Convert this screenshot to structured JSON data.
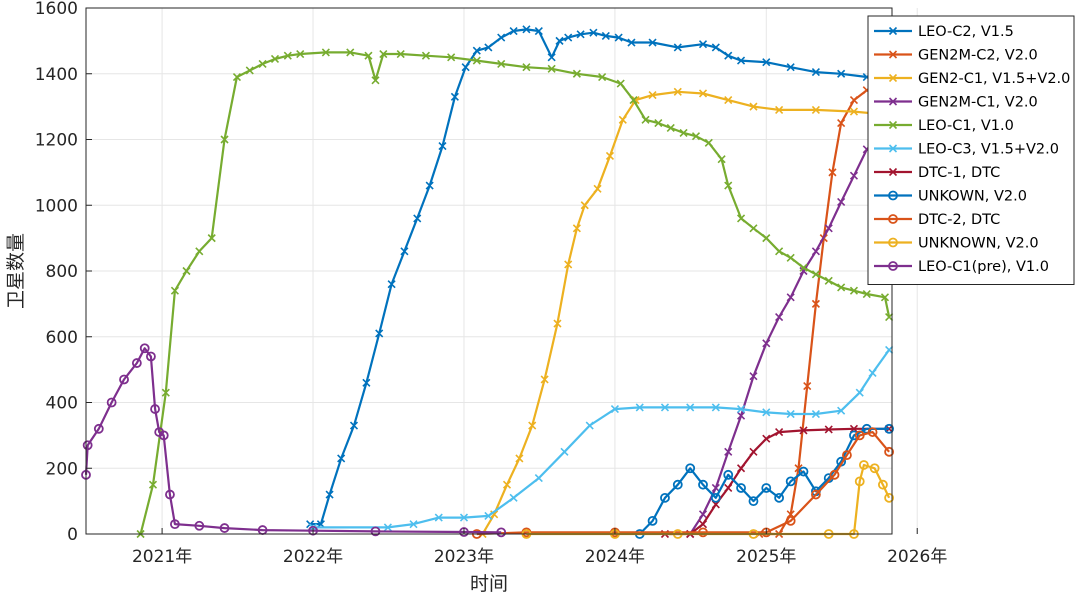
{
  "chart_data": {
    "type": "line",
    "title": "",
    "xlabel": "时间",
    "ylabel": "卫星数量",
    "xlim": [
      "2020-07-01",
      "2025-11-01"
    ],
    "ylim": [
      0,
      1600
    ],
    "grid": true,
    "legend_position": "top-right",
    "x_ticks": [
      {
        "date": "2021-01-01",
        "label": "2021年"
      },
      {
        "date": "2022-01-01",
        "label": "2022年"
      },
      {
        "date": "2023-01-01",
        "label": "2023年"
      },
      {
        "date": "2024-01-01",
        "label": "2024年"
      },
      {
        "date": "2025-01-01",
        "label": "2025年"
      },
      {
        "date": "2026-01-01",
        "label": "2026年"
      }
    ],
    "y_ticks": [
      0,
      200,
      400,
      600,
      800,
      1000,
      1200,
      1400,
      1600
    ],
    "series": [
      {
        "name": "LEO-C2, V1.5",
        "color": "#0072BD",
        "marker": "x",
        "points": [
          [
            "2021-12-25",
            30
          ],
          [
            "2022-01-20",
            30
          ],
          [
            "2022-02-10",
            120
          ],
          [
            "2022-03-10",
            230
          ],
          [
            "2022-04-10",
            330
          ],
          [
            "2022-05-10",
            460
          ],
          [
            "2022-06-10",
            610
          ],
          [
            "2022-07-10",
            760
          ],
          [
            "2022-08-10",
            860
          ],
          [
            "2022-09-10",
            960
          ],
          [
            "2022-10-10",
            1060
          ],
          [
            "2022-11-10",
            1180
          ],
          [
            "2022-12-10",
            1330
          ],
          [
            "2023-01-05",
            1420
          ],
          [
            "2023-02-01",
            1470
          ],
          [
            "2023-03-01",
            1480
          ],
          [
            "2023-04-01",
            1510
          ],
          [
            "2023-05-01",
            1530
          ],
          [
            "2023-06-01",
            1535
          ],
          [
            "2023-07-01",
            1530
          ],
          [
            "2023-08-01",
            1450
          ],
          [
            "2023-08-20",
            1500
          ],
          [
            "2023-09-10",
            1510
          ],
          [
            "2023-10-10",
            1520
          ],
          [
            "2023-11-10",
            1525
          ],
          [
            "2023-12-10",
            1515
          ],
          [
            "2024-01-10",
            1510
          ],
          [
            "2024-02-10",
            1495
          ],
          [
            "2024-04-01",
            1495
          ],
          [
            "2024-06-01",
            1480
          ],
          [
            "2024-08-01",
            1490
          ],
          [
            "2024-09-01",
            1480
          ],
          [
            "2024-10-01",
            1455
          ],
          [
            "2024-11-01",
            1440
          ],
          [
            "2025-01-01",
            1435
          ],
          [
            "2025-03-01",
            1420
          ],
          [
            "2025-05-01",
            1405
          ],
          [
            "2025-07-01",
            1400
          ],
          [
            "2025-09-01",
            1390
          ],
          [
            "2025-10-25",
            1380
          ]
        ]
      },
      {
        "name": "GEN2M-C2, V2.0",
        "color": "#D95319",
        "marker": "x",
        "points": [
          [
            "2024-12-15",
            0
          ],
          [
            "2025-02-01",
            0
          ],
          [
            "2025-03-01",
            60
          ],
          [
            "2025-03-20",
            200
          ],
          [
            "2025-04-10",
            450
          ],
          [
            "2025-05-01",
            700
          ],
          [
            "2025-05-20",
            900
          ],
          [
            "2025-06-10",
            1100
          ],
          [
            "2025-07-01",
            1250
          ],
          [
            "2025-08-01",
            1320
          ],
          [
            "2025-09-01",
            1350
          ],
          [
            "2025-10-01",
            1360
          ],
          [
            "2025-10-25",
            1340
          ]
        ]
      },
      {
        "name": "GEN2-C1, V1.5+V2.0",
        "color": "#EDB120",
        "marker": "x",
        "points": [
          [
            "2023-02-15",
            0
          ],
          [
            "2023-03-15",
            60
          ],
          [
            "2023-04-15",
            150
          ],
          [
            "2023-05-15",
            230
          ],
          [
            "2023-06-15",
            330
          ],
          [
            "2023-07-15",
            470
          ],
          [
            "2023-08-15",
            640
          ],
          [
            "2023-09-10",
            820
          ],
          [
            "2023-10-01",
            930
          ],
          [
            "2023-10-20",
            1000
          ],
          [
            "2023-11-20",
            1050
          ],
          [
            "2023-12-20",
            1150
          ],
          [
            "2024-01-20",
            1260
          ],
          [
            "2024-02-20",
            1320
          ],
          [
            "2024-04-01",
            1335
          ],
          [
            "2024-06-01",
            1345
          ],
          [
            "2024-08-01",
            1340
          ],
          [
            "2024-10-01",
            1320
          ],
          [
            "2024-12-01",
            1300
          ],
          [
            "2025-02-01",
            1290
          ],
          [
            "2025-05-01",
            1290
          ],
          [
            "2025-08-01",
            1285
          ],
          [
            "2025-10-25",
            1275
          ]
        ]
      },
      {
        "name": "GEN2M-C1, V2.0",
        "color": "#7E2F8E",
        "marker": "x",
        "points": [
          [
            "2024-07-01",
            0
          ],
          [
            "2024-08-01",
            60
          ],
          [
            "2024-09-01",
            140
          ],
          [
            "2024-10-01",
            250
          ],
          [
            "2024-11-01",
            360
          ],
          [
            "2024-12-01",
            480
          ],
          [
            "2025-01-01",
            580
          ],
          [
            "2025-02-01",
            660
          ],
          [
            "2025-03-01",
            720
          ],
          [
            "2025-04-01",
            800
          ],
          [
            "2025-05-01",
            860
          ],
          [
            "2025-06-01",
            930
          ],
          [
            "2025-07-01",
            1010
          ],
          [
            "2025-08-01",
            1090
          ],
          [
            "2025-09-01",
            1170
          ],
          [
            "2025-10-25",
            1240
          ]
        ]
      },
      {
        "name": "LEO-C1, V1.0",
        "color": "#77AC30",
        "marker": "x",
        "points": [
          [
            "2020-11-10",
            0
          ],
          [
            "2020-12-10",
            150
          ],
          [
            "2021-01-10",
            430
          ],
          [
            "2021-02-01",
            740
          ],
          [
            "2021-03-01",
            800
          ],
          [
            "2021-04-01",
            860
          ],
          [
            "2021-05-01",
            900
          ],
          [
            "2021-06-01",
            1200
          ],
          [
            "2021-07-01",
            1390
          ],
          [
            "2021-08-01",
            1410
          ],
          [
            "2021-09-01",
            1430
          ],
          [
            "2021-10-01",
            1445
          ],
          [
            "2021-11-01",
            1455
          ],
          [
            "2021-12-01",
            1460
          ],
          [
            "2022-02-01",
            1465
          ],
          [
            "2022-04-01",
            1465
          ],
          [
            "2022-05-15",
            1455
          ],
          [
            "2022-06-01",
            1380
          ],
          [
            "2022-06-20",
            1460
          ],
          [
            "2022-08-01",
            1460
          ],
          [
            "2022-10-01",
            1455
          ],
          [
            "2022-12-01",
            1450
          ],
          [
            "2023-02-01",
            1440
          ],
          [
            "2023-04-01",
            1430
          ],
          [
            "2023-06-01",
            1420
          ],
          [
            "2023-08-01",
            1415
          ],
          [
            "2023-10-01",
            1400
          ],
          [
            "2023-12-01",
            1390
          ],
          [
            "2024-01-15",
            1370
          ],
          [
            "2024-02-15",
            1320
          ],
          [
            "2024-03-15",
            1260
          ],
          [
            "2024-04-15",
            1250
          ],
          [
            "2024-05-15",
            1235
          ],
          [
            "2024-06-15",
            1220
          ],
          [
            "2024-07-15",
            1210
          ],
          [
            "2024-08-15",
            1190
          ],
          [
            "2024-09-15",
            1140
          ],
          [
            "2024-10-01",
            1060
          ],
          [
            "2024-11-01",
            960
          ],
          [
            "2024-12-01",
            930
          ],
          [
            "2025-01-01",
            900
          ],
          [
            "2025-02-01",
            860
          ],
          [
            "2025-03-01",
            840
          ],
          [
            "2025-04-01",
            810
          ],
          [
            "2025-05-01",
            790
          ],
          [
            "2025-06-01",
            770
          ],
          [
            "2025-07-01",
            750
          ],
          [
            "2025-08-01",
            740
          ],
          [
            "2025-09-01",
            730
          ],
          [
            "2025-10-15",
            720
          ],
          [
            "2025-10-25",
            660
          ]
        ]
      },
      {
        "name": "LEO-C3, V1.5+V2.0",
        "color": "#4DBEEE",
        "marker": "x",
        "points": [
          [
            "2022-01-01",
            20
          ],
          [
            "2022-07-01",
            20
          ],
          [
            "2022-09-01",
            30
          ],
          [
            "2022-11-01",
            50
          ],
          [
            "2023-01-01",
            50
          ],
          [
            "2023-03-01",
            55
          ],
          [
            "2023-05-01",
            110
          ],
          [
            "2023-07-01",
            170
          ],
          [
            "2023-09-01",
            250
          ],
          [
            "2023-11-01",
            330
          ],
          [
            "2024-01-01",
            380
          ],
          [
            "2024-03-01",
            385
          ],
          [
            "2024-05-01",
            385
          ],
          [
            "2024-07-01",
            385
          ],
          [
            "2024-09-01",
            385
          ],
          [
            "2024-11-01",
            380
          ],
          [
            "2025-01-01",
            370
          ],
          [
            "2025-03-01",
            365
          ],
          [
            "2025-05-01",
            365
          ],
          [
            "2025-07-01",
            375
          ],
          [
            "2025-08-15",
            430
          ],
          [
            "2025-09-15",
            490
          ],
          [
            "2025-10-25",
            560
          ]
        ]
      },
      {
        "name": "DTC-1, DTC",
        "color": "#A2142F",
        "marker": "x",
        "points": [
          [
            "2024-05-01",
            0
          ],
          [
            "2024-07-01",
            0
          ],
          [
            "2024-08-01",
            30
          ],
          [
            "2024-09-01",
            90
          ],
          [
            "2024-10-01",
            140
          ],
          [
            "2024-11-01",
            200
          ],
          [
            "2024-12-01",
            250
          ],
          [
            "2025-01-01",
            290
          ],
          [
            "2025-02-01",
            310
          ],
          [
            "2025-04-01",
            315
          ],
          [
            "2025-06-01",
            318
          ],
          [
            "2025-08-01",
            320
          ],
          [
            "2025-10-25",
            320
          ]
        ]
      },
      {
        "name": "UNKOWN, V2.0",
        "color": "#0072BD",
        "marker": "o",
        "points": [
          [
            "2024-03-01",
            0
          ],
          [
            "2024-04-01",
            40
          ],
          [
            "2024-05-01",
            110
          ],
          [
            "2024-06-01",
            150
          ],
          [
            "2024-07-01",
            200
          ],
          [
            "2024-08-01",
            150
          ],
          [
            "2024-09-01",
            110
          ],
          [
            "2024-10-01",
            180
          ],
          [
            "2024-11-01",
            140
          ],
          [
            "2024-12-01",
            100
          ],
          [
            "2025-01-01",
            140
          ],
          [
            "2025-02-01",
            110
          ],
          [
            "2025-03-01",
            160
          ],
          [
            "2025-04-01",
            190
          ],
          [
            "2025-05-01",
            130
          ],
          [
            "2025-06-01",
            170
          ],
          [
            "2025-07-01",
            220
          ],
          [
            "2025-08-01",
            300
          ],
          [
            "2025-09-01",
            320
          ],
          [
            "2025-10-25",
            320
          ]
        ]
      },
      {
        "name": "DTC-2, DTC",
        "color": "#D95319",
        "marker": "o",
        "points": [
          [
            "2023-02-01",
            0
          ],
          [
            "2023-06-01",
            5
          ],
          [
            "2024-01-01",
            5
          ],
          [
            "2024-08-01",
            5
          ],
          [
            "2025-01-01",
            5
          ],
          [
            "2025-03-01",
            40
          ],
          [
            "2025-05-01",
            120
          ],
          [
            "2025-06-15",
            180
          ],
          [
            "2025-07-15",
            240
          ],
          [
            "2025-08-15",
            300
          ],
          [
            "2025-09-15",
            310
          ],
          [
            "2025-10-25",
            250
          ]
        ]
      },
      {
        "name": "UNKNOWN, V2.0",
        "color": "#EDB120",
        "marker": "o",
        "points": [
          [
            "2023-06-01",
            0
          ],
          [
            "2024-01-01",
            0
          ],
          [
            "2024-06-01",
            0
          ],
          [
            "2024-12-01",
            0
          ],
          [
            "2025-06-01",
            0
          ],
          [
            "2025-08-01",
            0
          ],
          [
            "2025-08-15",
            160
          ],
          [
            "2025-08-25",
            210
          ],
          [
            "2025-09-20",
            200
          ],
          [
            "2025-10-10",
            150
          ],
          [
            "2025-10-25",
            110
          ]
        ]
      },
      {
        "name": "LEO-C1(pre), V1.0",
        "color": "#7E2F8E",
        "marker": "o",
        "points": [
          [
            "2020-07-01",
            180
          ],
          [
            "2020-07-05",
            270
          ],
          [
            "2020-08-01",
            320
          ],
          [
            "2020-09-01",
            400
          ],
          [
            "2020-10-01",
            470
          ],
          [
            "2020-11-01",
            520
          ],
          [
            "2020-11-20",
            565
          ],
          [
            "2020-12-05",
            540
          ],
          [
            "2020-12-15",
            380
          ],
          [
            "2020-12-25",
            310
          ],
          [
            "2021-01-05",
            300
          ],
          [
            "2021-01-20",
            120
          ],
          [
            "2021-02-01",
            30
          ],
          [
            "2021-04-01",
            25
          ],
          [
            "2021-06-01",
            18
          ],
          [
            "2021-09-01",
            12
          ],
          [
            "2022-01-01",
            10
          ],
          [
            "2022-06-01",
            8
          ],
          [
            "2023-01-01",
            6
          ],
          [
            "2023-04-01",
            5
          ]
        ]
      }
    ]
  }
}
